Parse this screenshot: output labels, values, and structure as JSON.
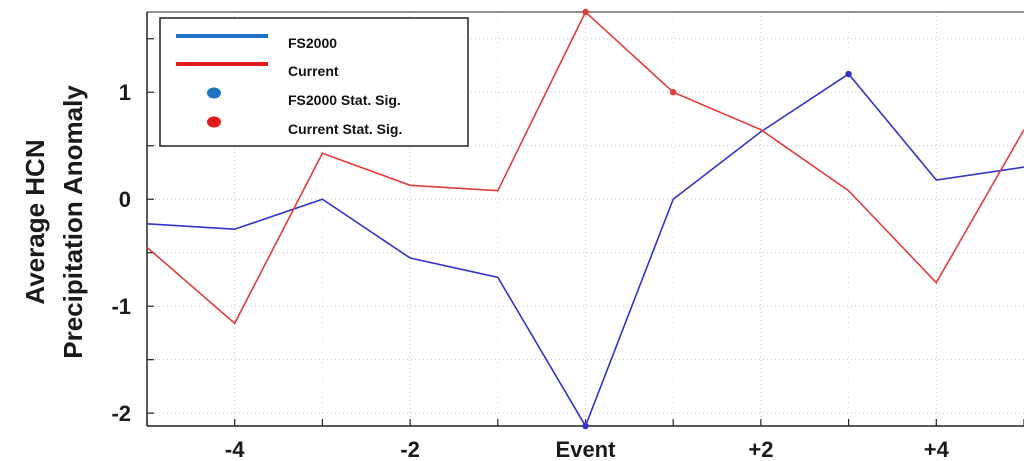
{
  "chart_data": {
    "type": "line",
    "ylabel_lines": [
      "Average HCN",
      "Precipitation Anomaly"
    ],
    "xlabel": "",
    "x": [
      -5,
      -4,
      -3,
      -2,
      -1,
      0,
      1,
      2,
      3,
      4,
      5
    ],
    "x_tick_values": [
      -4,
      -2,
      0,
      2,
      4
    ],
    "x_tick_labels": [
      "-4",
      "-2",
      "Event",
      "+2",
      "+4"
    ],
    "y_tick_values": [
      1,
      0,
      -1,
      -2
    ],
    "y_tick_labels": [
      "1",
      "0",
      "-1",
      "-2"
    ],
    "xlim": [
      -5,
      5
    ],
    "ylim": [
      -2.12,
      1.75
    ],
    "series": [
      {
        "name": "FS2000",
        "color": "#3333cc",
        "values": [
          -0.23,
          -0.28,
          0.0,
          -0.55,
          -0.73,
          -2.12,
          0.0,
          0.63,
          1.17,
          0.18,
          0.3
        ],
        "significant_x": [
          0,
          3
        ]
      },
      {
        "name": "Current",
        "color": "#e23c3c",
        "values": [
          -0.45,
          -1.16,
          0.43,
          0.13,
          0.08,
          1.75,
          1.0,
          0.65,
          0.08,
          -0.78,
          0.65
        ],
        "significant_x": [
          0,
          1
        ]
      }
    ],
    "legend": {
      "placement": "top-left",
      "entries": [
        {
          "label": "FS2000",
          "kind": "line",
          "color": "#1f72c4"
        },
        {
          "label": "Current",
          "kind": "line",
          "color": "#e11b1b"
        },
        {
          "label": "FS2000 Stat. Sig.",
          "kind": "dot",
          "color": "#1f72c4"
        },
        {
          "label": "Current Stat. Sig.",
          "kind": "dot",
          "color": "#e11b1b"
        }
      ]
    }
  }
}
